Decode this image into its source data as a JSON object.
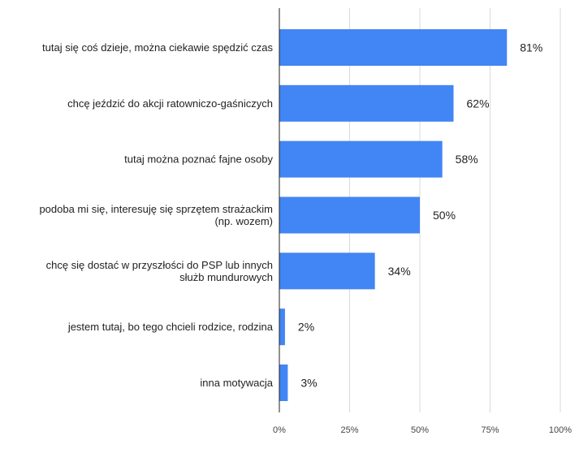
{
  "chart_data": {
    "type": "bar",
    "orientation": "horizontal",
    "title": "",
    "xlabel": "",
    "ylabel": "",
    "categories": [
      "tutaj się coś dzieje, można ciekawie spędzić czas",
      "chcę jeździć do akcji ratowniczo-gaśniczych",
      "tutaj można poznać fajne osoby",
      "podoba mi się, interesuję się sprzętem strażackim (np. wozem)",
      "chcę się dostać w przyszłości do PSP lub innych służb mundurowych",
      "jestem tutaj, bo tego chcieli rodzice, rodzina",
      "inna motywacja"
    ],
    "category_lines": [
      [
        "tutaj się coś dzieje, można ciekawie spędzić czas"
      ],
      [
        "chcę jeździć do akcji ratowniczo-gaśniczych"
      ],
      [
        "tutaj można poznać fajne osoby"
      ],
      [
        "podoba mi się, interesuję się sprzętem strażackim",
        "(np. wozem)"
      ],
      [
        "chcę się dostać w przyszłości do PSP lub innych",
        "służb mundurowych"
      ],
      [
        "jestem tutaj, bo tego chcieli rodzice, rodzina"
      ],
      [
        "inna motywacja"
      ]
    ],
    "values": [
      81,
      62,
      58,
      50,
      34,
      2,
      3
    ],
    "data_labels": [
      "81%",
      "62%",
      "58%",
      "50%",
      "34%",
      "2%",
      "3%"
    ],
    "xlim": [
      0,
      100
    ],
    "x_ticks": [
      0,
      25,
      50,
      75,
      100
    ],
    "x_tick_labels": [
      "0%",
      "25%",
      "50%",
      "75%",
      "100%"
    ],
    "grid": true,
    "legend": "none",
    "colors": {
      "bar": "#4285f4",
      "grid": "#d9d9d9",
      "axis": "#222222"
    }
  }
}
